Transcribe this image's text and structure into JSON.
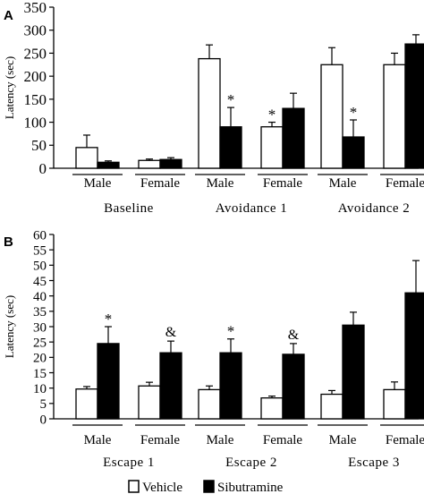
{
  "legend": {
    "items": [
      {
        "label": "Vehicle",
        "fill": "#ffffff"
      },
      {
        "label": "Sibutramine",
        "fill": "#000000"
      }
    ]
  },
  "colors": {
    "vehicle": "#ffffff",
    "sibutramine": "#000000",
    "stroke": "#000000"
  },
  "chart_data": [
    {
      "panel": "A",
      "type": "bar",
      "ylabel": "Latency (sec)",
      "ylim": [
        0,
        350
      ],
      "yticks": [
        0,
        50,
        100,
        150,
        200,
        250,
        300,
        350
      ],
      "groups": [
        {
          "label": "Baseline",
          "subgroups": [
            {
              "label": "Male",
              "vehicle": 45,
              "vehicle_err": 27,
              "sibutramine": 13,
              "sibutramine_err": 3,
              "vehicle_mark": "",
              "sibutramine_mark": ""
            },
            {
              "label": "Female",
              "vehicle": 17,
              "vehicle_err": 3,
              "sibutramine": 19,
              "sibutramine_err": 4,
              "vehicle_mark": "",
              "sibutramine_mark": ""
            }
          ]
        },
        {
          "label": "Avoidance 1",
          "subgroups": [
            {
              "label": "Male",
              "vehicle": 238,
              "vehicle_err": 30,
              "sibutramine": 90,
              "sibutramine_err": 42,
              "vehicle_mark": "",
              "sibutramine_mark": "*"
            },
            {
              "label": "Female",
              "vehicle": 90,
              "vehicle_err": 10,
              "sibutramine": 130,
              "sibutramine_err": 33,
              "vehicle_mark": "*",
              "sibutramine_mark": ""
            }
          ]
        },
        {
          "label": "Avoidance 2",
          "subgroups": [
            {
              "label": "Male",
              "vehicle": 225,
              "vehicle_err": 37,
              "sibutramine": 68,
              "sibutramine_err": 37,
              "vehicle_mark": "",
              "sibutramine_mark": "*"
            },
            {
              "label": "Female",
              "vehicle": 225,
              "vehicle_err": 25,
              "sibutramine": 270,
              "sibutramine_err": 20,
              "vehicle_mark": "",
              "sibutramine_mark": ""
            }
          ]
        }
      ]
    },
    {
      "panel": "B",
      "type": "bar",
      "ylabel": "Latency (sec)",
      "ylim": [
        0,
        60
      ],
      "yticks": [
        0,
        5,
        10,
        15,
        20,
        25,
        30,
        35,
        40,
        45,
        50,
        55,
        60
      ],
      "groups": [
        {
          "label": "Escape 1",
          "subgroups": [
            {
              "label": "Male",
              "vehicle": 9.7,
              "vehicle_err": 0.8,
              "sibutramine": 24.5,
              "sibutramine_err": 5.5,
              "vehicle_mark": "",
              "sibutramine_mark": "*"
            },
            {
              "label": "Female",
              "vehicle": 10.7,
              "vehicle_err": 1.2,
              "sibutramine": 21.5,
              "sibutramine_err": 3.8,
              "vehicle_mark": "",
              "sibutramine_mark": "&"
            }
          ]
        },
        {
          "label": "Escape 2",
          "subgroups": [
            {
              "label": "Male",
              "vehicle": 9.5,
              "vehicle_err": 1.2,
              "sibutramine": 21.5,
              "sibutramine_err": 4.5,
              "vehicle_mark": "",
              "sibutramine_mark": "*"
            },
            {
              "label": "Female",
              "vehicle": 6.8,
              "vehicle_err": 0.6,
              "sibutramine": 21.0,
              "sibutramine_err": 3.5,
              "vehicle_mark": "",
              "sibutramine_mark": "&"
            }
          ]
        },
        {
          "label": "Escape 3",
          "subgroups": [
            {
              "label": "Male",
              "vehicle": 8.0,
              "vehicle_err": 1.2,
              "sibutramine": 30.5,
              "sibutramine_err": 4.2,
              "vehicle_mark": "",
              "sibutramine_mark": ""
            },
            {
              "label": "Female",
              "vehicle": 9.5,
              "vehicle_err": 2.5,
              "sibutramine": 41.0,
              "sibutramine_err": 10.5,
              "vehicle_mark": "",
              "sibutramine_mark": ""
            }
          ]
        }
      ]
    }
  ]
}
